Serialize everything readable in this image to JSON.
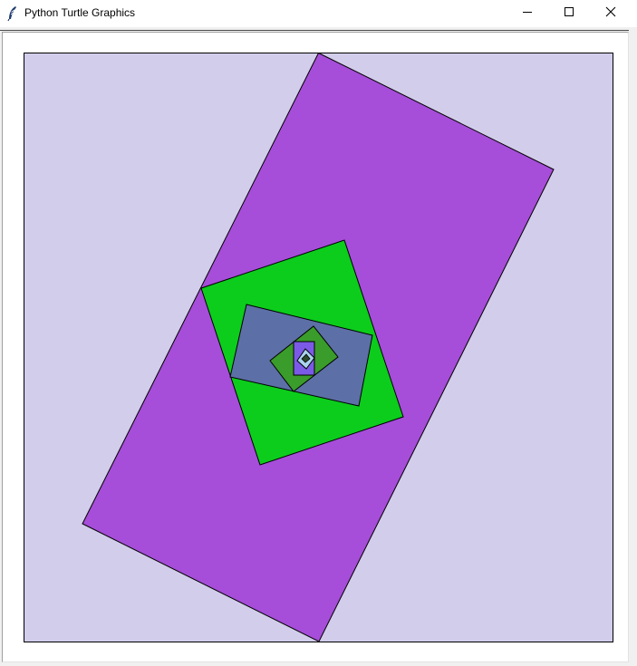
{
  "window": {
    "title": "Python Turtle Graphics",
    "controls": {
      "minimize": "minimize-icon",
      "maximize": "maximize-icon",
      "close": "close-icon"
    }
  },
  "canvas": {
    "background": "#d1cdea",
    "border_color": "#000000",
    "shapes": [
      {
        "name": "purple-rectangle",
        "fill": "#a64dd9"
      },
      {
        "name": "green-square",
        "fill": "#0ccd1c"
      },
      {
        "name": "slate-blue-rectangle",
        "fill": "#5c6fa6"
      },
      {
        "name": "olive-green-square",
        "fill": "#3a9c2a"
      },
      {
        "name": "violet-rectangle",
        "fill": "#7a5ae6"
      },
      {
        "name": "light-blue-square",
        "fill": "#a9d4ef"
      },
      {
        "name": "tiny-center-shape",
        "fill": "#2c4a2c"
      }
    ]
  }
}
